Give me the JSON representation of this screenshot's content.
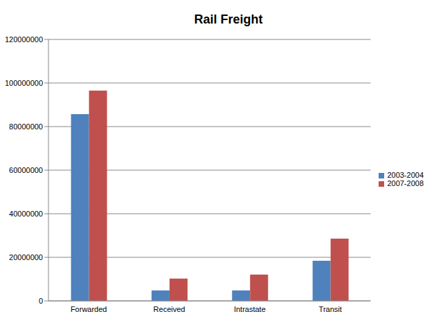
{
  "chart_data": {
    "type": "bar",
    "title": "Rail Freight",
    "categories": [
      "Forwarded",
      "Received",
      "Intrastate",
      "Transit"
    ],
    "series": [
      {
        "name": "2003-2004",
        "color": "#4f81bd",
        "values": [
          85700000,
          4800000,
          4800000,
          18400000
        ]
      },
      {
        "name": "2007-2008",
        "color": "#c0504d",
        "values": [
          96500000,
          10200000,
          12100000,
          28600000
        ]
      }
    ],
    "ylim": [
      0,
      120000000
    ],
    "yticks": [
      0,
      20000000,
      40000000,
      60000000,
      80000000,
      100000000,
      120000000
    ],
    "grid": true,
    "legend": "right"
  }
}
